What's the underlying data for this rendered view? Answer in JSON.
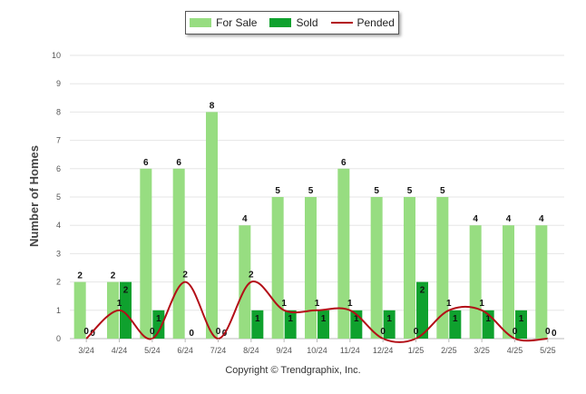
{
  "chart_data": {
    "type": "bar",
    "categories": [
      "3/24",
      "4/24",
      "5/24",
      "6/24",
      "7/24",
      "8/24",
      "9/24",
      "10/24",
      "11/24",
      "12/24",
      "1/25",
      "2/25",
      "3/25",
      "4/25",
      "5/25"
    ],
    "series": [
      {
        "name": "For Sale",
        "type": "bar",
        "color": "#97dd81",
        "values": [
          2,
          2,
          6,
          6,
          8,
          4,
          5,
          5,
          6,
          5,
          5,
          5,
          4,
          4,
          4
        ]
      },
      {
        "name": "Sold",
        "type": "bar",
        "color": "#0fa12e",
        "values": [
          0,
          2,
          1,
          0,
          0,
          1,
          1,
          1,
          1,
          1,
          2,
          1,
          1,
          1,
          0
        ]
      },
      {
        "name": "Pended",
        "type": "line",
        "color": "#b30e17",
        "values": [
          0,
          1,
          0,
          2,
          0,
          2,
          1,
          1,
          1,
          0,
          0,
          1,
          1,
          0,
          0
        ]
      }
    ],
    "title": "",
    "xlabel": "",
    "ylabel": "Number of Homes",
    "ylim": [
      0,
      10
    ],
    "yticks": [
      0,
      1,
      2,
      3,
      4,
      5,
      6,
      7,
      8,
      9,
      10
    ],
    "grid": true,
    "legend": "top-center"
  },
  "footer": {
    "copyright": "Copyright © Trendgraphix, Inc."
  }
}
